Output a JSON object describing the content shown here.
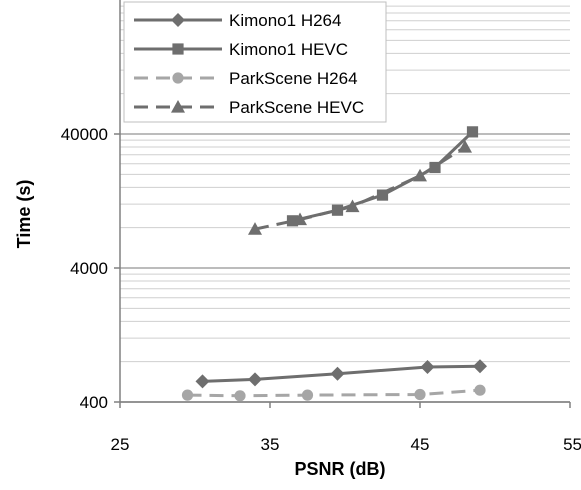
{
  "chart_data": {
    "type": "line",
    "title": "",
    "xlabel": "PSNR (dB)",
    "ylabel": "Time (s)",
    "x_scale": "linear",
    "y_scale": "log",
    "xlim": [
      25,
      55
    ],
    "ylim": [
      400,
      400000
    ],
    "x_ticks": [
      {
        "value": 25,
        "label": "25"
      },
      {
        "value": 35,
        "label": "35"
      },
      {
        "value": 45,
        "label": "45"
      },
      {
        "value": 55,
        "label": "55"
      }
    ],
    "y_ticks": [
      {
        "value": 400,
        "label": "400"
      },
      {
        "value": 4000,
        "label": "4000"
      },
      {
        "value": 40000,
        "label": "40000"
      }
    ],
    "grid": "horizontal minor lines (log scale)",
    "legend_placement": "top-left inside plot",
    "series": [
      {
        "name": "Kimono1 H264",
        "color": "#6e6e6e",
        "line_style": "solid",
        "marker": "diamond",
        "points": [
          {
            "x": 30.5,
            "y": 570
          },
          {
            "x": 34.0,
            "y": 590
          },
          {
            "x": 39.5,
            "y": 650
          },
          {
            "x": 45.5,
            "y": 730
          },
          {
            "x": 49.0,
            "y": 740
          }
        ]
      },
      {
        "name": "Kimono1 HEVC",
        "color": "#6e6e6e",
        "line_style": "solid",
        "marker": "square",
        "points": [
          {
            "x": 36.5,
            "y": 9000
          },
          {
            "x": 39.5,
            "y": 10800
          },
          {
            "x": 42.5,
            "y": 14000
          },
          {
            "x": 46.0,
            "y": 22500
          },
          {
            "x": 48.5,
            "y": 41500
          }
        ]
      },
      {
        "name": "ParkScene H264",
        "color": "#a6a6a6",
        "line_style": "dashed",
        "marker": "circle",
        "points": [
          {
            "x": 29.5,
            "y": 450
          },
          {
            "x": 33.0,
            "y": 445
          },
          {
            "x": 37.5,
            "y": 450
          },
          {
            "x": 45.0,
            "y": 455
          },
          {
            "x": 49.0,
            "y": 490
          }
        ]
      },
      {
        "name": "ParkScene HEVC",
        "color": "#6e6e6e",
        "line_style": "dashed",
        "marker": "triangle",
        "points": [
          {
            "x": 34.0,
            "y": 7800
          },
          {
            "x": 37.0,
            "y": 9200
          },
          {
            "x": 40.5,
            "y": 11500
          },
          {
            "x": 45.0,
            "y": 19500
          },
          {
            "x": 48.0,
            "y": 32000
          }
        ]
      }
    ]
  }
}
